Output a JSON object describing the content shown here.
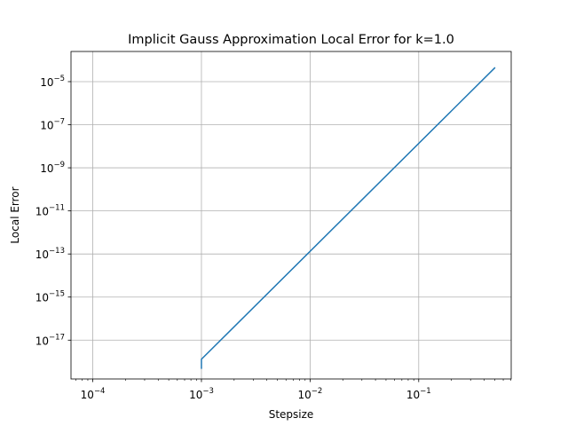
{
  "chart_data": {
    "type": "line",
    "title": "Implicit Gauss Approximation Local Error for k=1.0",
    "xlabel": "Stepsize",
    "ylabel": "Local Error",
    "xscale": "log",
    "yscale": "log",
    "xlim": [
      6.3e-05,
      0.71
    ],
    "ylim": [
      1.58e-19,
      0.000251
    ],
    "grid": true,
    "x_ticks": [
      {
        "value": 0.0001,
        "base": "10",
        "exp": "−4"
      },
      {
        "value": 0.001,
        "base": "10",
        "exp": "−3"
      },
      {
        "value": 0.01,
        "base": "10",
        "exp": "−2"
      },
      {
        "value": 0.1,
        "base": "10",
        "exp": "−1"
      }
    ],
    "y_ticks": [
      {
        "value": 1e-05,
        "base": "10",
        "exp": "−5"
      },
      {
        "value": 1e-07,
        "base": "10",
        "exp": "−7"
      },
      {
        "value": 1e-09,
        "base": "10",
        "exp": "−9"
      },
      {
        "value": 1e-11,
        "base": "10",
        "exp": "−11"
      },
      {
        "value": 1e-13,
        "base": "10",
        "exp": "−13"
      },
      {
        "value": 1e-15,
        "base": "10",
        "exp": "−15"
      },
      {
        "value": 1e-17,
        "base": "10",
        "exp": "−17"
      }
    ],
    "series": [
      {
        "name": "local error",
        "color": "#1f77b4",
        "x": [
          0.001,
          0.001,
          0.5
        ],
        "y": [
          5e-19,
          1.3e-18,
          4.3e-05
        ]
      }
    ]
  }
}
